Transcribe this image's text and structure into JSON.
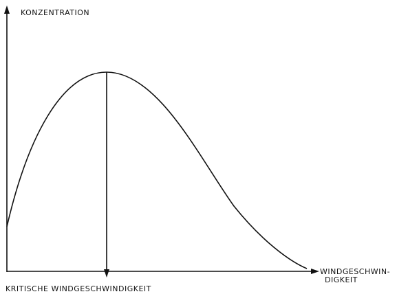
{
  "y_axis_label": "KONZENTRATION",
  "x_axis_label": [
    "WINDGESCHWIN-",
    "DIGKEIT"
  ],
  "marker_label": "KRITISCHE WINDGESCHWINDIGKEIT"
}
